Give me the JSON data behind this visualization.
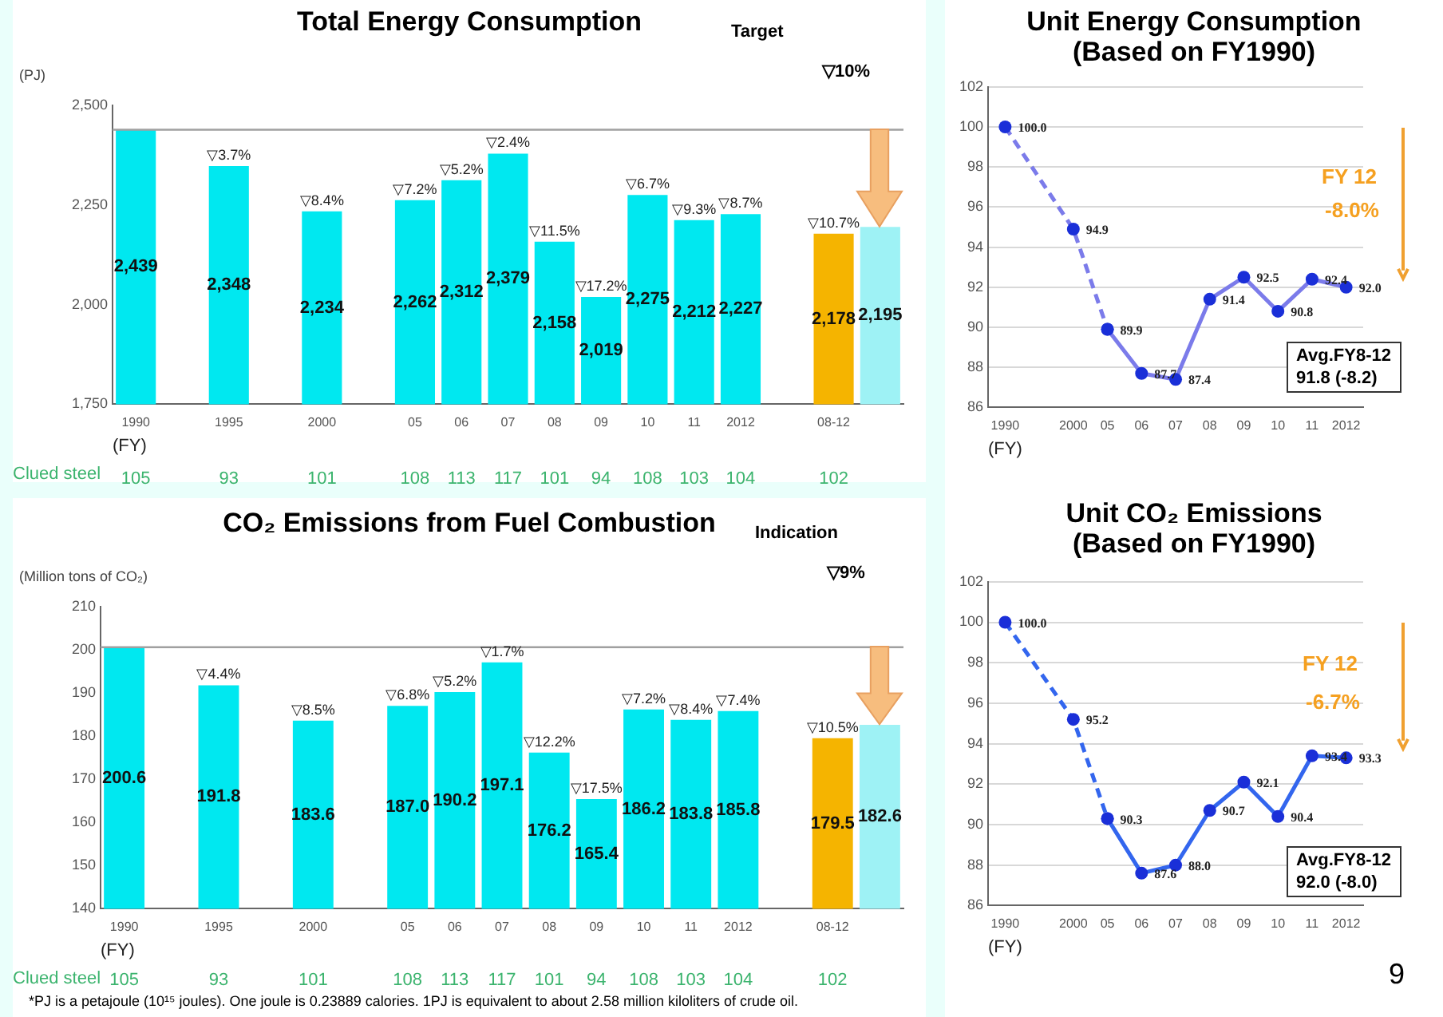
{
  "chart_data": [
    {
      "type": "bar",
      "title": "Total Energy Consumption",
      "ylabel": "(PJ)",
      "xlabel": "(FY)",
      "categories": [
        "1990",
        null,
        "1995",
        null,
        "2000",
        null,
        "05",
        "06",
        "07",
        "08",
        "09",
        "10",
        "11",
        "2012",
        null,
        "08-12",
        null
      ],
      "values": [
        2439,
        null,
        2348,
        null,
        2234,
        null,
        2262,
        2312,
        2379,
        2158,
        2019,
        2275,
        2212,
        2227,
        null,
        2178,
        2195
      ],
      "colors": [
        "#00e8f0",
        "#00e8f0",
        "#00e8f0",
        "#00e8f0",
        "#00e8f0",
        "#00e8f0",
        "#00e8f0",
        "#00e8f0",
        "#00e8f0",
        "#00e8f0",
        "#00e8f0",
        "#00e8f0",
        "#00e8f0",
        "#00e8f0",
        "#00e8f0",
        "#f5b400",
        "#9ef2f5"
      ],
      "value_labels": [
        "2,439",
        null,
        "2,348",
        null,
        "2,234",
        null,
        "2,262",
        "2,312",
        "2,379",
        "2,158",
        "2,019",
        "2,275",
        "2,212",
        "2,227",
        null,
        "2,178",
        "2,195"
      ],
      "ylim": [
        1750,
        2500
      ],
      "yticks": [
        {
          "value": 1750,
          "label": "1,750"
        },
        {
          "value": 2000,
          "label": "2,000"
        },
        {
          "value": 2250,
          "label": "2,250"
        },
        {
          "value": 2500,
          "label": "2,500"
        }
      ],
      "grid": false,
      "legend": false,
      "ref_lines": [
        {
          "axis": "y",
          "value": 2439,
          "color": "#a0a0a0"
        }
      ],
      "annotations": [
        "Target",
        "▽10%",
        "Clued steel",
        {
          "text": "▽3.7%",
          "x": "1995",
          "y": 2348
        },
        {
          "text": "▽8.4%",
          "x": "2000",
          "y": 2234
        },
        {
          "text": "▽7.2%",
          "x": "05",
          "y": 2262
        },
        {
          "text": "▽5.2%",
          "x": "06",
          "y": 2312
        },
        {
          "text": "▽2.4%",
          "x": "07",
          "y": 2379
        },
        {
          "text": "▽11.5%",
          "x": "08",
          "y": 2158
        },
        {
          "text": "▽17.2%",
          "x": "09",
          "y": 2019
        },
        {
          "text": "▽6.7%",
          "x": "10",
          "y": 2275
        },
        {
          "text": "▽9.3%",
          "x": "11",
          "y": 2212
        },
        {
          "text": "▽8.7%",
          "x": "2012",
          "y": 2227
        },
        {
          "text": "▽10.7%",
          "x": "08-12",
          "y": 2178
        },
        "105",
        "93",
        "101",
        "108",
        "113",
        "117",
        "101",
        "94",
        "108",
        "103",
        "104",
        "102"
      ]
    },
    {
      "type": "bar",
      "title": "CO₂ Emissions from Fuel Combustion",
      "ylabel": "(Million tons of CO₂)",
      "xlabel": "(FY)",
      "categories": [
        "1990",
        null,
        "1995",
        null,
        "2000",
        null,
        "05",
        "06",
        "07",
        "08",
        "09",
        "10",
        "11",
        "2012",
        null,
        "08-12",
        null
      ],
      "values": [
        200.6,
        null,
        191.8,
        null,
        183.6,
        null,
        187.0,
        190.2,
        197.1,
        176.2,
        165.4,
        186.2,
        183.8,
        185.8,
        null,
        179.5,
        182.6
      ],
      "colors": [
        "#00e8f0",
        "#00e8f0",
        "#00e8f0",
        "#00e8f0",
        "#00e8f0",
        "#00e8f0",
        "#00e8f0",
        "#00e8f0",
        "#00e8f0",
        "#00e8f0",
        "#00e8f0",
        "#00e8f0",
        "#00e8f0",
        "#00e8f0",
        "#00e8f0",
        "#f5b400",
        "#9ef2f5"
      ],
      "value_labels": [
        "200.6",
        null,
        "191.8",
        null,
        "183.6",
        null,
        "187.0",
        "190.2",
        "197.1",
        "176.2",
        "165.4",
        "186.2",
        "183.8",
        "185.8",
        null,
        "179.5",
        "182.6"
      ],
      "ylim": [
        140,
        210
      ],
      "yticks": [
        140,
        150,
        160,
        170,
        180,
        190,
        200,
        210
      ],
      "grid": false,
      "legend": false,
      "ref_lines": [
        {
          "axis": "y",
          "value": 200.6,
          "color": "#a0a0a0"
        }
      ],
      "annotations": [
        "Indication",
        "▽9%",
        "Clued steel",
        "*PJ is a petajoule (10¹⁵ joules). One joule is 0.23889 calories. 1PJ is equivalent to about 2.58 million kiloliters of crude oil.",
        {
          "text": "▽4.4%",
          "x": "1995",
          "y": 191.8
        },
        {
          "text": "▽8.5%",
          "x": "2000",
          "y": 183.6
        },
        {
          "text": "▽6.8%",
          "x": "05",
          "y": 187.0
        },
        {
          "text": "▽5.2%",
          "x": "06",
          "y": 190.2
        },
        {
          "text": "▽1.7%",
          "x": "07",
          "y": 197.1
        },
        {
          "text": "▽12.2%",
          "x": "08",
          "y": 176.2
        },
        {
          "text": "▽17.5%",
          "x": "09",
          "y": 165.4
        },
        {
          "text": "▽7.2%",
          "x": "10",
          "y": 186.2
        },
        {
          "text": "▽8.4%",
          "x": "11",
          "y": 183.8
        },
        {
          "text": "▽7.4%",
          "x": "2012",
          "y": 185.8
        },
        {
          "text": "▽10.5%",
          "x": "08-12",
          "y": 179.5
        },
        "105",
        "93",
        "101",
        "108",
        "113",
        "117",
        "101",
        "94",
        "108",
        "103",
        "104",
        "102"
      ]
    },
    {
      "type": "line",
      "title": "Unit Energy Consumption\n(Based on FY1990)",
      "xlabel": "(FY)",
      "categories": [
        "1990",
        null,
        "2000",
        "05",
        "06",
        "07",
        "08",
        "09",
        "10",
        "11",
        "2012"
      ],
      "series": [
        {
          "color": "#7b7bea",
          "line_style": "dashed",
          "values": [
            100.0,
            null,
            94.9,
            89.9,
            null,
            null,
            null,
            null,
            null,
            null,
            null
          ],
          "value_labels": [
            "100.0",
            null,
            "94.9",
            null,
            null,
            null,
            null,
            null,
            null,
            null,
            null
          ]
        },
        {
          "color": "#7b7bea",
          "line_style": "solid",
          "values": [
            null,
            null,
            null,
            89.9,
            87.7,
            87.4,
            91.4,
            92.5,
            90.8,
            92.4,
            92.0
          ],
          "value_labels": [
            null,
            null,
            null,
            "89.9",
            "87.7",
            "87.4",
            "91.4",
            "92.5",
            "90.8",
            "92.4",
            "92.0"
          ]
        }
      ],
      "ylim": [
        86,
        102
      ],
      "yticks": [
        86,
        88,
        90,
        92,
        94,
        96,
        98,
        100,
        102
      ],
      "grid": "y",
      "legend": false,
      "marker": "circle",
      "annotations": [
        "FY 12",
        "-8.0%",
        "Avg.FY8-12\n91.8 (-8.2)"
      ]
    },
    {
      "type": "line",
      "title": "Unit CO₂ Emissions\n(Based on FY1990)",
      "xlabel": "(FY)",
      "categories": [
        "1990",
        null,
        "2000",
        "05",
        "06",
        "07",
        "08",
        "09",
        "10",
        "11",
        "2012"
      ],
      "series": [
        {
          "color": "#3366ee",
          "line_style": "dashed",
          "values": [
            100.0,
            null,
            95.2,
            90.3,
            null,
            null,
            null,
            null,
            null,
            null,
            null
          ],
          "value_labels": [
            "100.0",
            null,
            "95.2",
            null,
            null,
            null,
            null,
            null,
            null,
            null,
            null
          ]
        },
        {
          "color": "#3366ee",
          "line_style": "solid",
          "values": [
            null,
            null,
            null,
            90.3,
            87.6,
            88.0,
            90.7,
            92.1,
            90.4,
            93.4,
            93.3
          ],
          "value_labels": [
            null,
            null,
            null,
            "90.3",
            "87.6",
            "88.0",
            "90.7",
            "92.1",
            "90.4",
            "93.4",
            "93.3"
          ]
        }
      ],
      "ylim": [
        86,
        102
      ],
      "yticks": [
        86,
        88,
        90,
        92,
        94,
        96,
        98,
        100,
        102
      ],
      "grid": "y",
      "legend": false,
      "marker": "circle",
      "annotations": [
        "FY 12",
        "-6.7%",
        "Avg.FY8-12\n92.0 (-8.0)",
        "9"
      ]
    }
  ]
}
